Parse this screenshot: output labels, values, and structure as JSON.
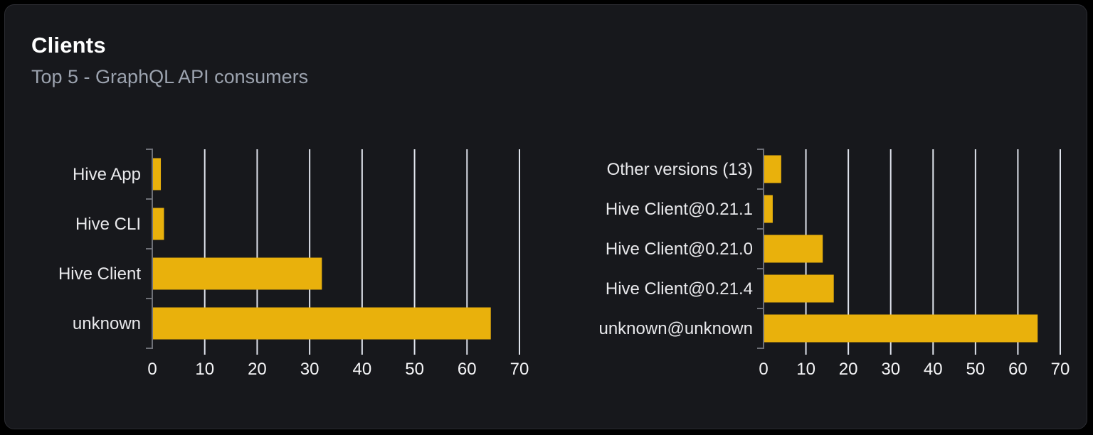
{
  "card": {
    "title": "Clients",
    "subtitle": "Top 5 - GraphQL API consumers"
  },
  "colors": {
    "page_background": "#000000",
    "card_background": "#17181c",
    "card_border": "#2c2d33",
    "title_text": "#ffffff",
    "subtitle_text": "#9ca3af",
    "bar_fill": "#e9b10c",
    "gridline": "#dfe3ec",
    "axis_line": "#6e7077",
    "category_text": "#e9e9ec",
    "tick_text": "#f5f5f7"
  },
  "chart_data": [
    {
      "type": "bar",
      "orientation": "horizontal",
      "categories": [
        "Hive App",
        "Hive CLI",
        "Hive Client",
        "unknown"
      ],
      "values": [
        1.5,
        2.1,
        32.2,
        64.4
      ],
      "xlim": [
        0,
        70
      ],
      "xticks": [
        0,
        10,
        20,
        30,
        40,
        50,
        60,
        70
      ],
      "grid": "vertical",
      "legend": "none",
      "title": "",
      "xlabel": "",
      "ylabel": ""
    },
    {
      "type": "bar",
      "orientation": "horizontal",
      "categories": [
        "Other versions (13)",
        "Hive Client@0.21.1",
        "Hive Client@0.21.0",
        "Hive Client@0.21.4",
        "unknown@unknown"
      ],
      "values": [
        4.0,
        2.0,
        13.8,
        16.4,
        64.5
      ],
      "xlim": [
        0,
        70
      ],
      "xticks": [
        0,
        10,
        20,
        30,
        40,
        50,
        60,
        70
      ],
      "grid": "vertical",
      "legend": "none",
      "title": "",
      "xlabel": "",
      "ylabel": ""
    }
  ]
}
